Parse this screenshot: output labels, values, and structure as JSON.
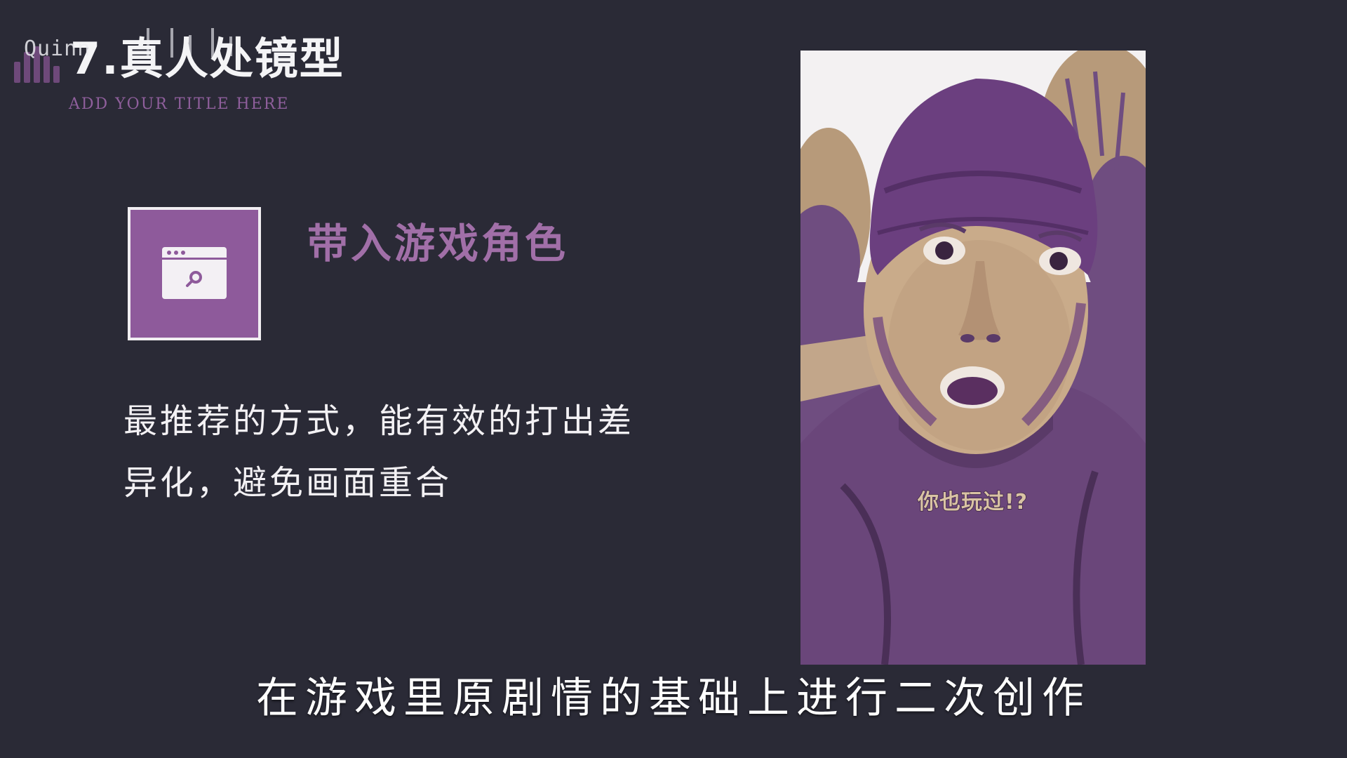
{
  "header": {
    "watermark": "Quinn",
    "title": "7.真人处镜型",
    "subtitle": "ADD YOUR TITLE HERE"
  },
  "feature": {
    "icon": "browser-search-icon",
    "heading": "带入游戏角色",
    "description": "最推荐的方式，能有效的打出差异化，避免画面重合"
  },
  "video": {
    "caption": "你也玩过!?"
  },
  "subtitle_caption": "在游戏里原剧情的基础上进行二次创作",
  "colors": {
    "background": "#2a2a36",
    "accent_purple": "#8e5a9b",
    "heading_purple": "#a16fa8",
    "subtitle_purple": "#8f5f9c",
    "text": "#f3f1f4"
  }
}
